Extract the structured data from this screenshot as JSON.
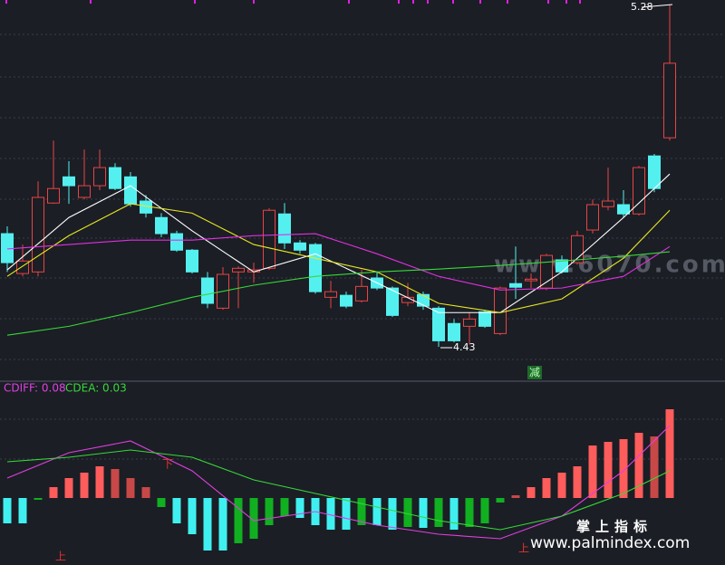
{
  "chart_data": [
    {
      "type": "candlestick",
      "up_color": "#e84444",
      "down_color": "#54f0f0",
      "ylim": [
        4.347,
        5.291
      ],
      "candles": [
        [
          4.711,
          4.729,
          4.616,
          4.639
        ],
        [
          4.612,
          4.684,
          4.605,
          4.643
        ],
        [
          4.616,
          4.841,
          4.605,
          4.801
        ],
        [
          4.787,
          4.942,
          4.785,
          4.823
        ],
        [
          4.852,
          4.891,
          4.785,
          4.83
        ],
        [
          4.801,
          4.92,
          4.796,
          4.83
        ],
        [
          4.83,
          4.92,
          4.819,
          4.875
        ],
        [
          4.875,
          4.886,
          4.819,
          4.823
        ],
        [
          4.852,
          4.864,
          4.778,
          4.785
        ],
        [
          4.792,
          4.807,
          4.751,
          4.762
        ],
        [
          4.751,
          4.762,
          4.702,
          4.711
        ],
        [
          4.711,
          4.718,
          4.666,
          4.67
        ],
        [
          4.67,
          4.673,
          4.612,
          4.616
        ],
        [
          4.601,
          4.616,
          4.526,
          4.538
        ],
        [
          4.526,
          4.628,
          4.522,
          4.61
        ],
        [
          4.616,
          4.63,
          4.526,
          4.625
        ],
        [
          4.616,
          4.639,
          4.589,
          4.621
        ],
        [
          4.625,
          4.774,
          4.621,
          4.769
        ],
        [
          4.76,
          4.787,
          4.673,
          4.688
        ],
        [
          4.688,
          4.695,
          4.661,
          4.67
        ],
        [
          4.684,
          4.688,
          4.562,
          4.567
        ],
        [
          4.553,
          4.594,
          4.526,
          4.567
        ],
        [
          4.558,
          4.567,
          4.526,
          4.531
        ],
        [
          4.544,
          4.621,
          4.54,
          4.58
        ],
        [
          4.601,
          4.616,
          4.571,
          4.576
        ],
        [
          4.576,
          4.58,
          4.504,
          4.508
        ],
        [
          4.54,
          4.589,
          4.531,
          4.553
        ],
        [
          4.56,
          4.567,
          4.522,
          4.531
        ],
        [
          4.526,
          4.531,
          4.43,
          4.445
        ],
        [
          4.488,
          4.499,
          4.441,
          4.445
        ],
        [
          4.481,
          4.515,
          4.436,
          4.499
        ],
        [
          4.517,
          4.522,
          4.477,
          4.481
        ],
        [
          4.463,
          4.58,
          4.459,
          4.576
        ],
        [
          4.587,
          4.679,
          4.549,
          4.578
        ],
        [
          4.594,
          4.612,
          4.576,
          4.598
        ],
        [
          4.576,
          4.661,
          4.571,
          4.657
        ],
        [
          4.646,
          4.657,
          4.612,
          4.616
        ],
        [
          4.639,
          4.718,
          4.634,
          4.706
        ],
        [
          4.72,
          4.796,
          4.711,
          4.783
        ],
        [
          4.778,
          4.875,
          4.769,
          4.792
        ],
        [
          4.783,
          4.819,
          4.751,
          4.76
        ],
        [
          4.76,
          4.879,
          4.756,
          4.875
        ],
        [
          4.904,
          4.909,
          4.814,
          4.823
        ],
        [
          4.949,
          5.28,
          4.942,
          5.134
        ]
      ],
      "series": [
        {
          "color": "#ffffff",
          "x": [
            0,
            4,
            8,
            12,
            16,
            20,
            24,
            28,
            32,
            36,
            40,
            43
          ],
          "values": [
            4.621,
            4.751,
            4.83,
            4.718,
            4.616,
            4.661,
            4.589,
            4.515,
            4.515,
            4.616,
            4.751,
            4.859
          ]
        },
        {
          "color": "#e8e820",
          "x": [
            0,
            4,
            8,
            12,
            16,
            20,
            24,
            28,
            32,
            36,
            40,
            43
          ],
          "values": [
            4.605,
            4.706,
            4.785,
            4.762,
            4.684,
            4.65,
            4.616,
            4.538,
            4.515,
            4.549,
            4.65,
            4.769
          ]
        },
        {
          "color": "#e030e0",
          "x": [
            0,
            4,
            8,
            12,
            16,
            20,
            24,
            28,
            32,
            36,
            40,
            43
          ],
          "values": [
            4.673,
            4.684,
            4.695,
            4.695,
            4.706,
            4.711,
            4.661,
            4.605,
            4.571,
            4.576,
            4.605,
            4.679
          ]
        },
        {
          "color": "#38d838",
          "x": [
            0,
            4,
            8,
            12,
            16,
            20,
            24,
            28,
            32,
            36,
            40,
            43
          ],
          "values": [
            4.459,
            4.481,
            4.515,
            4.553,
            4.583,
            4.605,
            4.616,
            4.623,
            4.632,
            4.643,
            4.655,
            4.666
          ]
        }
      ]
    },
    {
      "type": "macd",
      "ylim": [
        -0.074,
        0.128
      ],
      "bars": [
        -0.028,
        -0.028,
        -0.002,
        0.012,
        0.022,
        0.028,
        0.035,
        0.032,
        0.022,
        0.012,
        -0.01,
        -0.028,
        -0.04,
        -0.058,
        -0.058,
        -0.05,
        -0.045,
        -0.03,
        -0.02,
        -0.022,
        -0.03,
        -0.035,
        -0.035,
        -0.03,
        -0.03,
        -0.035,
        -0.032,
        -0.033,
        -0.032,
        -0.035,
        -0.032,
        -0.028,
        -0.005,
        0.003,
        0.012,
        0.022,
        0.028,
        0.035,
        0.058,
        0.062,
        0.065,
        0.072,
        0.068,
        0.098
      ],
      "series": [
        {
          "name": "CDIFF: 0.08",
          "color": "#e040e0",
          "x": [
            0,
            4,
            8,
            12,
            16,
            20,
            24,
            28,
            32,
            36,
            40,
            43
          ],
          "values": [
            0.022,
            0.05,
            0.063,
            0.03,
            -0.025,
            -0.015,
            -0.03,
            -0.04,
            -0.045,
            -0.02,
            0.03,
            0.08
          ]
        },
        {
          "name": "CDEA: 0.03",
          "color": "#38d838",
          "x": [
            0,
            4,
            8,
            12,
            16,
            20,
            24,
            28,
            32,
            36,
            40,
            43
          ],
          "values": [
            0.04,
            0.045,
            0.053,
            0.045,
            0.02,
            0.005,
            -0.01,
            -0.025,
            -0.035,
            -0.02,
            0.005,
            0.03
          ]
        }
      ]
    }
  ],
  "markers": {
    "jian": "减",
    "xia": "下",
    "shang_1": "上",
    "shang_2": "上"
  },
  "watermark": {
    "site_1": "www.6070.com",
    "brand": "掌上指标",
    "site_2": "www.palmindex.com"
  }
}
